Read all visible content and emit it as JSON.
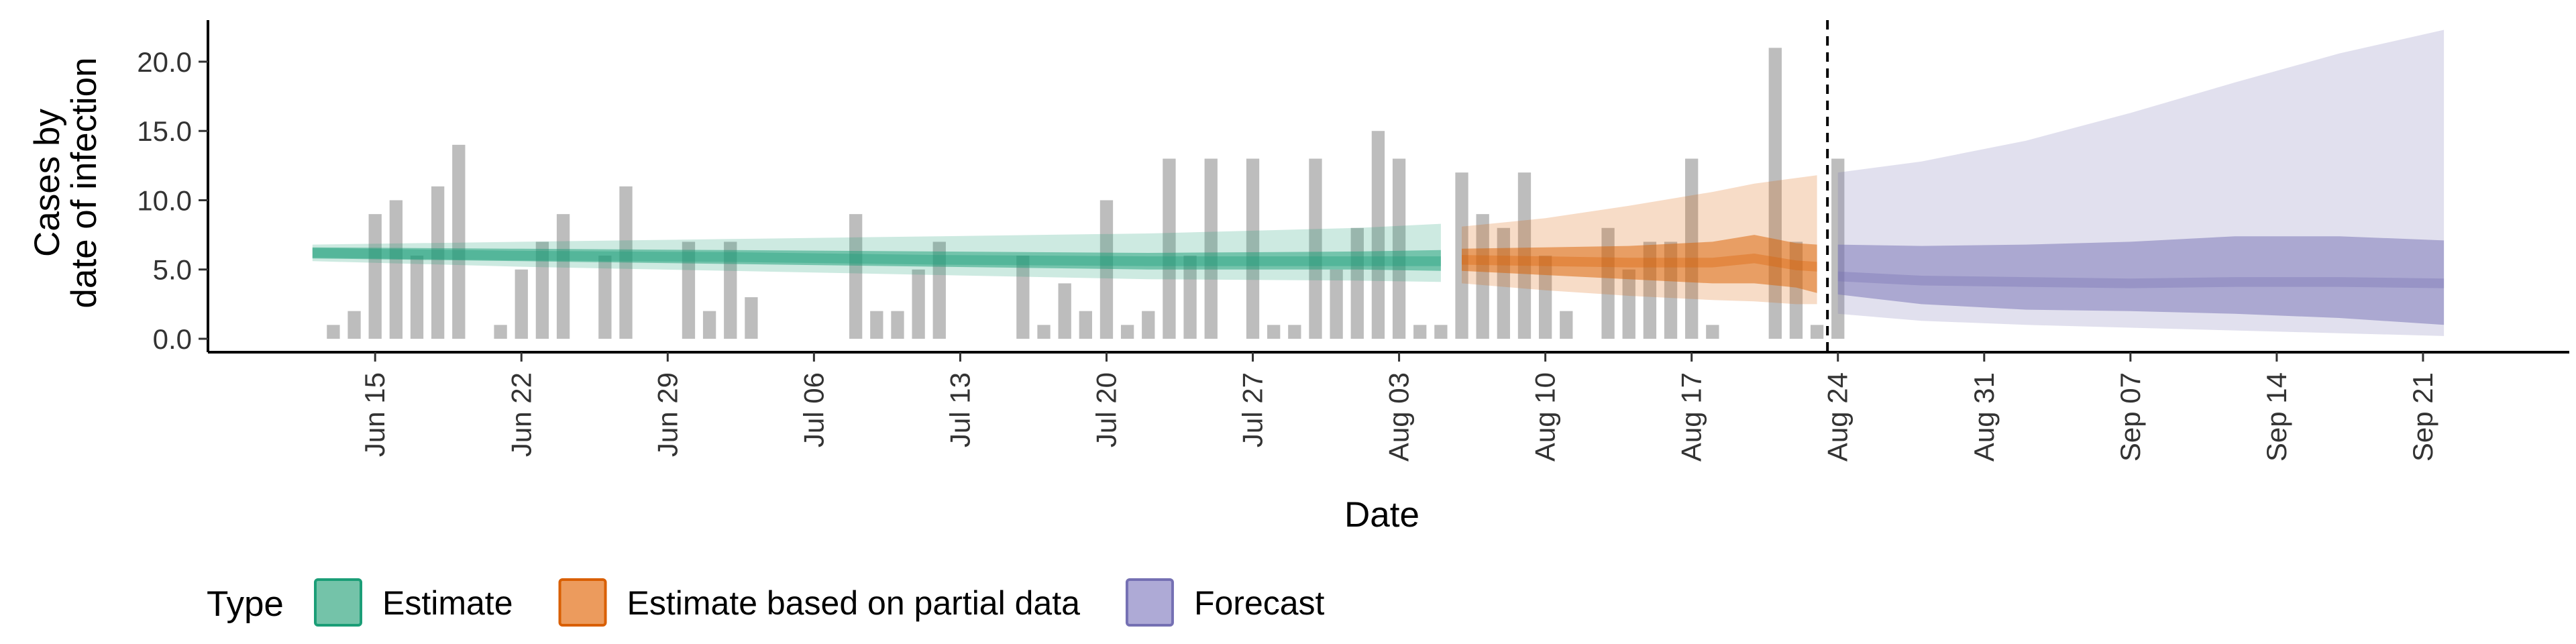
{
  "chart_data": {
    "type": "bar",
    "xlabel": "Date",
    "ylabel": [
      "Cases by",
      "date of infection"
    ],
    "ylim": [
      0,
      23
    ],
    "y_ticks": [
      0,
      5,
      10,
      15,
      20
    ],
    "y_tick_labels": [
      "0.0",
      "5.0",
      "10.0",
      "15.0",
      "20.0"
    ],
    "x_range": [
      "2020-06-07",
      "2020-09-28"
    ],
    "x_tick_dates": [
      "2020-06-15",
      "2020-06-22",
      "2020-06-29",
      "2020-07-06",
      "2020-07-13",
      "2020-07-20",
      "2020-07-27",
      "2020-08-03",
      "2020-08-10",
      "2020-08-17",
      "2020-08-24",
      "2020-08-31",
      "2020-09-07",
      "2020-09-14",
      "2020-09-21"
    ],
    "x_tick_labels": [
      "Jun 15",
      "Jun 22",
      "Jun 29",
      "Jul 06",
      "Jul 13",
      "Jul 20",
      "Jul 27",
      "Aug 03",
      "Aug 10",
      "Aug 17",
      "Aug 24",
      "Aug 31",
      "Sep 07",
      "Sep 14",
      "Sep 21"
    ],
    "forecast_start": "2020-08-23",
    "grid": false,
    "legend_placement": "bottom",
    "bar_color": "#bdbdbd",
    "observed_cases": {
      "start_date": "2020-06-13",
      "values": [
        1,
        2,
        9,
        10,
        6,
        11,
        14,
        0,
        1,
        5,
        7,
        9,
        0,
        6,
        11,
        0,
        0,
        7,
        2,
        7,
        3,
        0,
        0,
        0,
        0,
        9,
        2,
        2,
        5,
        7,
        0,
        0,
        0,
        6,
        1,
        4,
        2,
        10,
        1,
        2,
        13,
        6,
        13,
        0,
        13,
        1,
        1,
        13,
        5,
        8,
        15,
        13,
        1,
        1,
        12,
        9,
        8,
        12,
        6,
        2,
        0,
        8,
        5,
        7,
        7,
        13,
        1,
        0,
        0,
        21,
        7,
        1,
        13
      ]
    },
    "series": [
      {
        "name": "Estimate",
        "color": "#1b9e77",
        "dates": [
          "2020-06-12",
          "2020-06-22",
          "2020-07-02",
          "2020-07-12",
          "2020-07-22",
          "2020-08-01",
          "2020-08-05"
        ],
        "median": [
          6.2,
          6.0,
          5.9,
          5.7,
          5.6,
          5.6,
          5.6
        ],
        "lower_50": [
          5.8,
          5.6,
          5.4,
          5.2,
          5.0,
          5.0,
          4.9
        ],
        "upper_50": [
          6.6,
          6.5,
          6.4,
          6.3,
          6.2,
          6.3,
          6.4
        ],
        "lower_90": [
          5.6,
          5.2,
          4.9,
          4.6,
          4.3,
          4.2,
          4.1
        ],
        "upper_90": [
          6.8,
          7.0,
          7.2,
          7.4,
          7.6,
          8.0,
          8.3
        ]
      },
      {
        "name": "Estimate based on partial data",
        "color": "#d95f02",
        "dates": [
          "2020-08-06",
          "2020-08-10",
          "2020-08-14",
          "2020-08-18",
          "2020-08-20",
          "2020-08-22",
          "2020-08-23"
        ],
        "median": [
          5.7,
          5.6,
          5.5,
          5.5,
          5.8,
          5.3,
          5.2
        ],
        "lower_50": [
          4.9,
          4.6,
          4.3,
          4.0,
          4.0,
          3.7,
          3.3
        ],
        "upper_50": [
          6.5,
          6.6,
          6.7,
          7.0,
          7.5,
          6.9,
          6.8
        ],
        "lower_90": [
          4.0,
          3.5,
          3.1,
          2.8,
          2.7,
          2.5,
          2.5
        ],
        "upper_90": [
          8.1,
          8.7,
          9.6,
          10.6,
          11.2,
          11.6,
          11.8
        ]
      },
      {
        "name": "Forecast",
        "color": "#7570b3",
        "dates": [
          "2020-08-24",
          "2020-08-28",
          "2020-09-02",
          "2020-09-07",
          "2020-09-12",
          "2020-09-17",
          "2020-09-22"
        ],
        "median": [
          4.5,
          4.2,
          4.1,
          4.0,
          4.1,
          4.1,
          4.0
        ],
        "lower_50": [
          3.2,
          2.5,
          2.1,
          2.0,
          1.8,
          1.5,
          1.0
        ],
        "upper_50": [
          6.8,
          6.7,
          6.8,
          7.0,
          7.4,
          7.4,
          7.1
        ],
        "lower_90": [
          1.8,
          1.3,
          1.0,
          0.8,
          0.6,
          0.4,
          0.2
        ],
        "upper_90": [
          12.0,
          12.8,
          14.3,
          16.3,
          18.5,
          20.6,
          22.3
        ]
      }
    ],
    "legend": {
      "title": "Type",
      "items": [
        {
          "label": "Estimate",
          "fill": "#74c3a9",
          "stroke": "#1b9e77"
        },
        {
          "label": "Estimate based on partial data",
          "fill": "#ec9b5d",
          "stroke": "#d95f02"
        },
        {
          "label": "Forecast",
          "fill": "#aeaad6",
          "stroke": "#7570b3"
        }
      ]
    }
  }
}
